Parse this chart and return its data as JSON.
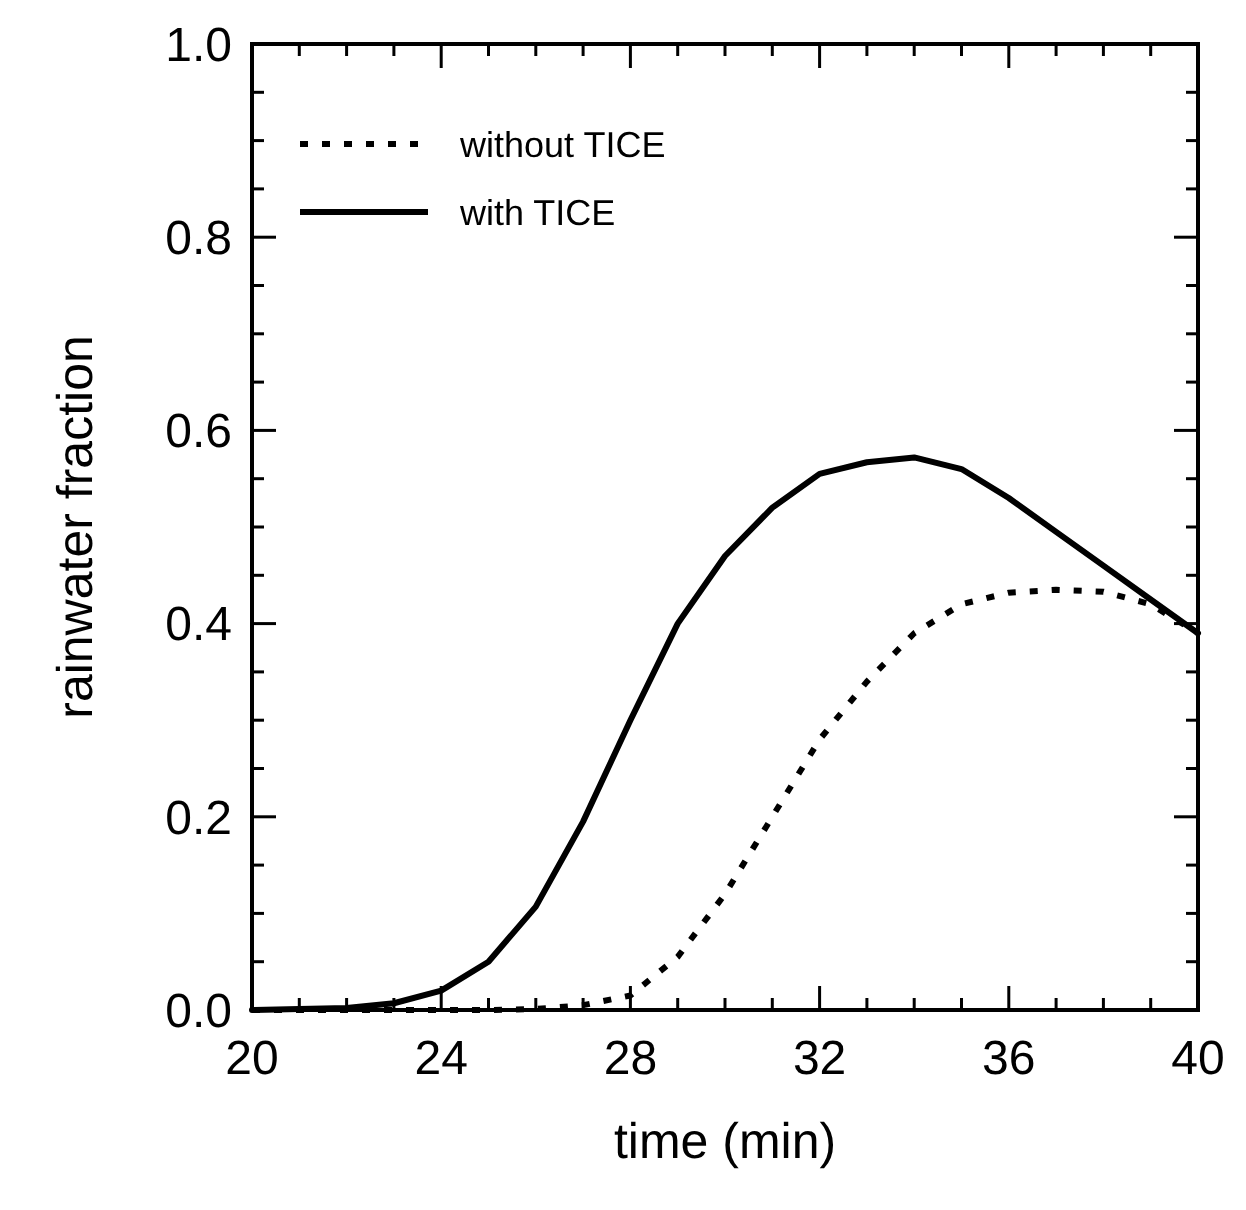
{
  "chart_data": {
    "type": "line",
    "xlabel": "time (min)",
    "ylabel": "rainwater fraction",
    "x": [
      20,
      21,
      22,
      23,
      24,
      25,
      26,
      27,
      28,
      29,
      30,
      31,
      32,
      33,
      34,
      35,
      36,
      37,
      38,
      39,
      40
    ],
    "series": [
      {
        "name": "without TICE",
        "color": "#000000",
        "line_style": "dotted",
        "values": [
          0,
          0,
          0,
          0,
          0,
          0,
          0.001,
          0.005,
          0.015,
          0.055,
          0.12,
          0.2,
          0.28,
          0.34,
          0.39,
          0.42,
          0.432,
          0.435,
          0.433,
          0.42,
          0.39
        ]
      },
      {
        "name": "with TICE",
        "color": "#000000",
        "line_style": "solid",
        "values": [
          0,
          0.001,
          0.002,
          0.007,
          0.02,
          0.05,
          0.107,
          0.195,
          0.3,
          0.4,
          0.47,
          0.52,
          0.555,
          0.567,
          0.572,
          0.56,
          0.53,
          0.495,
          0.46,
          0.425,
          0.39
        ]
      }
    ],
    "xlim": [
      20,
      40
    ],
    "xticks": [
      20,
      {
        "value": 21,
        "label": null
      },
      {
        "value": 22,
        "label": null
      },
      {
        "value": 23,
        "label": null
      },
      24,
      {
        "value": 25,
        "label": null
      },
      {
        "value": 26,
        "label": null
      },
      {
        "value": 27,
        "label": null
      },
      28,
      {
        "value": 29,
        "label": null
      },
      {
        "value": 30,
        "label": null
      },
      {
        "value": 31,
        "label": null
      },
      32,
      {
        "value": 33,
        "label": null
      },
      {
        "value": 34,
        "label": null
      },
      {
        "value": 35,
        "label": null
      },
      36,
      {
        "value": 37,
        "label": null
      },
      {
        "value": 38,
        "label": null
      },
      {
        "value": 39,
        "label": null
      },
      40
    ],
    "ylim": [
      0,
      1
    ],
    "yticks": [
      {
        "value": 0,
        "label": "0.0"
      },
      {
        "value": 0.05,
        "label": null
      },
      {
        "value": 0.1,
        "label": null
      },
      {
        "value": 0.15,
        "label": null
      },
      {
        "value": 0.2,
        "label": "0.2"
      },
      {
        "value": 0.25,
        "label": null
      },
      {
        "value": 0.3,
        "label": null
      },
      {
        "value": 0.35,
        "label": null
      },
      {
        "value": 0.4,
        "label": "0.4"
      },
      {
        "value": 0.45,
        "label": null
      },
      {
        "value": 0.5,
        "label": null
      },
      {
        "value": 0.55,
        "label": null
      },
      {
        "value": 0.6,
        "label": "0.6"
      },
      {
        "value": 0.65,
        "label": null
      },
      {
        "value": 0.7,
        "label": null
      },
      {
        "value": 0.75,
        "label": null
      },
      {
        "value": 0.8,
        "label": "0.8"
      },
      {
        "value": 0.85,
        "label": null
      },
      {
        "value": 0.9,
        "label": null
      },
      {
        "value": 0.95,
        "label": null
      },
      {
        "value": 1,
        "label": "1.0"
      }
    ],
    "grid": false,
    "legend": "top left",
    "marker": "none"
  }
}
